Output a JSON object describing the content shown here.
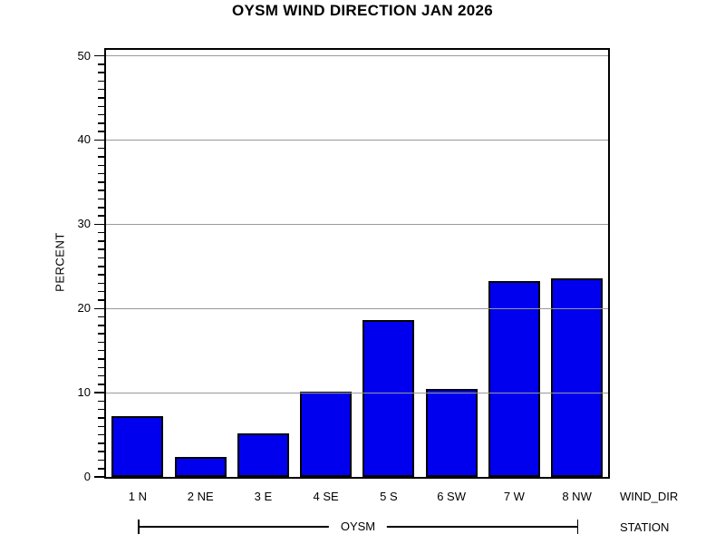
{
  "page": {
    "title": "OYSM WIND DIRECTION JAN 2026"
  },
  "chart_data": {
    "type": "bar",
    "title": "OYSM WIND DIRECTION JAN 2026",
    "categories": [
      "1 N",
      "2 NE",
      "3 E",
      "4 SE",
      "5 S",
      "6 SW",
      "7 W",
      "8 NW"
    ],
    "values": [
      7.1,
      2.3,
      5.1,
      10.0,
      18.5,
      10.3,
      23.1,
      23.5
    ],
    "xlabel": "WIND_DIR",
    "ylabel": "PERCENT",
    "ylim": [
      0,
      50
    ],
    "y_major_ticks": [
      0,
      10,
      20,
      30,
      40,
      50
    ],
    "y_minor_step": 1,
    "grid": "horizontal major gridlines drawn over bars",
    "legend": "none",
    "group_axis": {
      "title": "STATION",
      "group_label": "OYSM"
    },
    "colors": {
      "bar_fill": "#0000EE",
      "bar_border": "#000000",
      "gridline": "#999999",
      "axis": "#000000",
      "background": "#FFFFFF",
      "text": "#000000"
    }
  }
}
